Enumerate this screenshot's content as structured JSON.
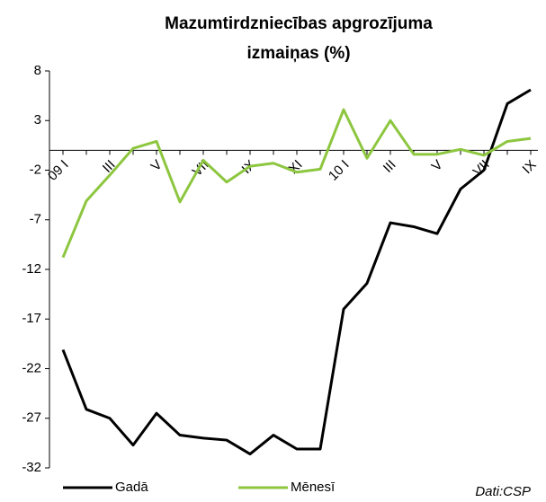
{
  "chart_data": {
    "type": "line",
    "title": [
      "Mazumtirdzniecības apgrozījuma",
      "izmaiņas (%)"
    ],
    "categories": [
      "09 I",
      null,
      "III",
      null,
      "V",
      null,
      "VII",
      null,
      "IX",
      null,
      "XI",
      null,
      "10 I",
      null,
      "III",
      null,
      "V",
      null,
      "VII",
      null,
      "IX"
    ],
    "series": [
      {
        "name": "Gadā",
        "color": "#000000",
        "values": [
          -20.1,
          -26.1,
          -27.0,
          -29.7,
          -26.5,
          -28.7,
          -29.0,
          -29.2,
          -30.6,
          -28.7,
          -30.1,
          -30.1,
          -16.0,
          -13.4,
          -7.3,
          -7.7,
          -8.4,
          -3.9,
          -2.0,
          4.7,
          6.1
        ]
      },
      {
        "name": "Mēnesī",
        "color": "#8dc63f",
        "values": [
          -10.8,
          -5.1,
          -2.5,
          0.2,
          0.9,
          -5.2,
          -1.0,
          -3.2,
          -1.6,
          -1.3,
          -2.2,
          -1.9,
          4.1,
          -0.8,
          3.0,
          -0.4,
          -0.4,
          0.1,
          -0.5,
          0.9,
          1.2
        ]
      }
    ],
    "ylim": [
      -32,
      8
    ],
    "yticks": [
      -32,
      -27,
      -22,
      -17,
      -12,
      -7,
      -2,
      3,
      8
    ],
    "source": "Dati:CSP"
  }
}
